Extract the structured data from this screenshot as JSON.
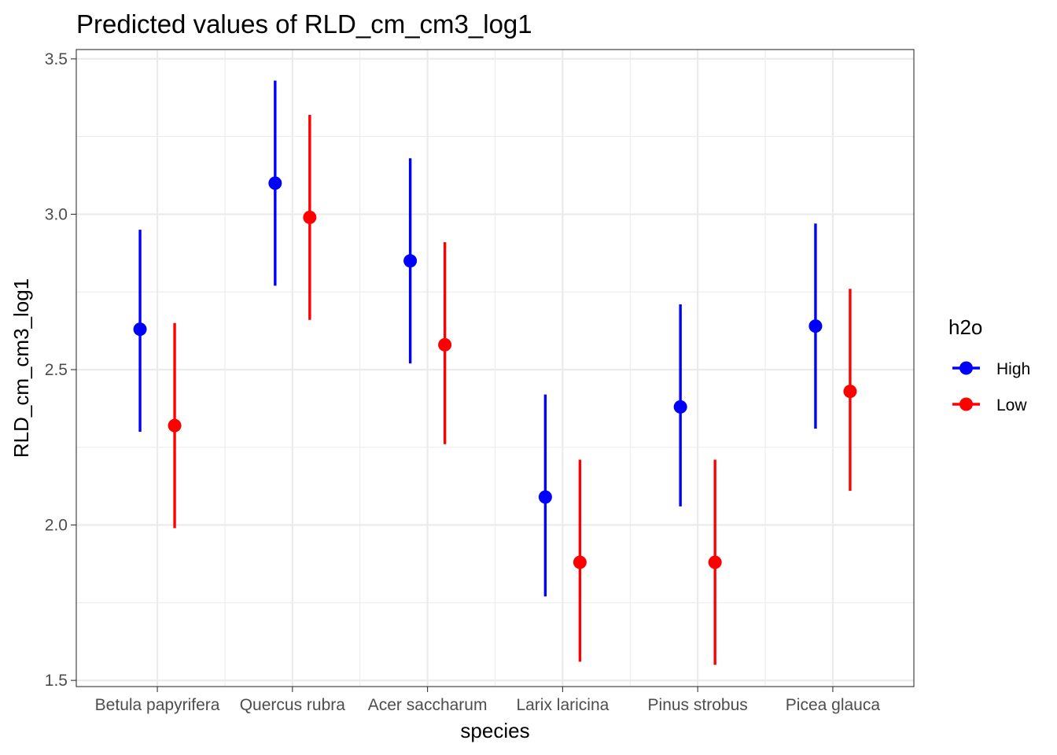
{
  "chart_data": {
    "type": "scatter",
    "title": "Predicted values of RLD_cm_cm3_log1",
    "xlabel": "species",
    "ylabel": "RLD_cm_cm3_log1",
    "categories": [
      "Betula papyrifera",
      "Quercus rubra",
      "Acer saccharum",
      "Larix laricina",
      "Pinus strobus",
      "Picea glauca"
    ],
    "ylim": [
      1.48,
      3.53
    ],
    "yticks": [
      "1.5",
      "2.0",
      "2.5",
      "3.0",
      "3.5"
    ],
    "ytick_values": [
      1.5,
      2.0,
      2.5,
      3.0,
      3.5
    ],
    "grid": true,
    "legend": {
      "title": "h2o",
      "position": "right"
    },
    "series": [
      {
        "name": "High",
        "color": "#0000ff",
        "values": [
          2.63,
          3.1,
          2.85,
          2.09,
          2.38,
          2.64
        ],
        "lower": [
          2.3,
          2.77,
          2.52,
          1.77,
          2.06,
          2.31
        ],
        "upper": [
          2.95,
          3.43,
          3.18,
          2.42,
          2.71,
          2.97
        ]
      },
      {
        "name": "Low",
        "color": "#ff0000",
        "values": [
          2.32,
          2.99,
          2.58,
          1.88,
          1.88,
          2.43
        ],
        "lower": [
          1.99,
          2.66,
          2.26,
          1.56,
          1.55,
          2.11
        ],
        "upper": [
          2.65,
          3.32,
          2.91,
          2.21,
          2.21,
          2.76
        ]
      }
    ]
  }
}
